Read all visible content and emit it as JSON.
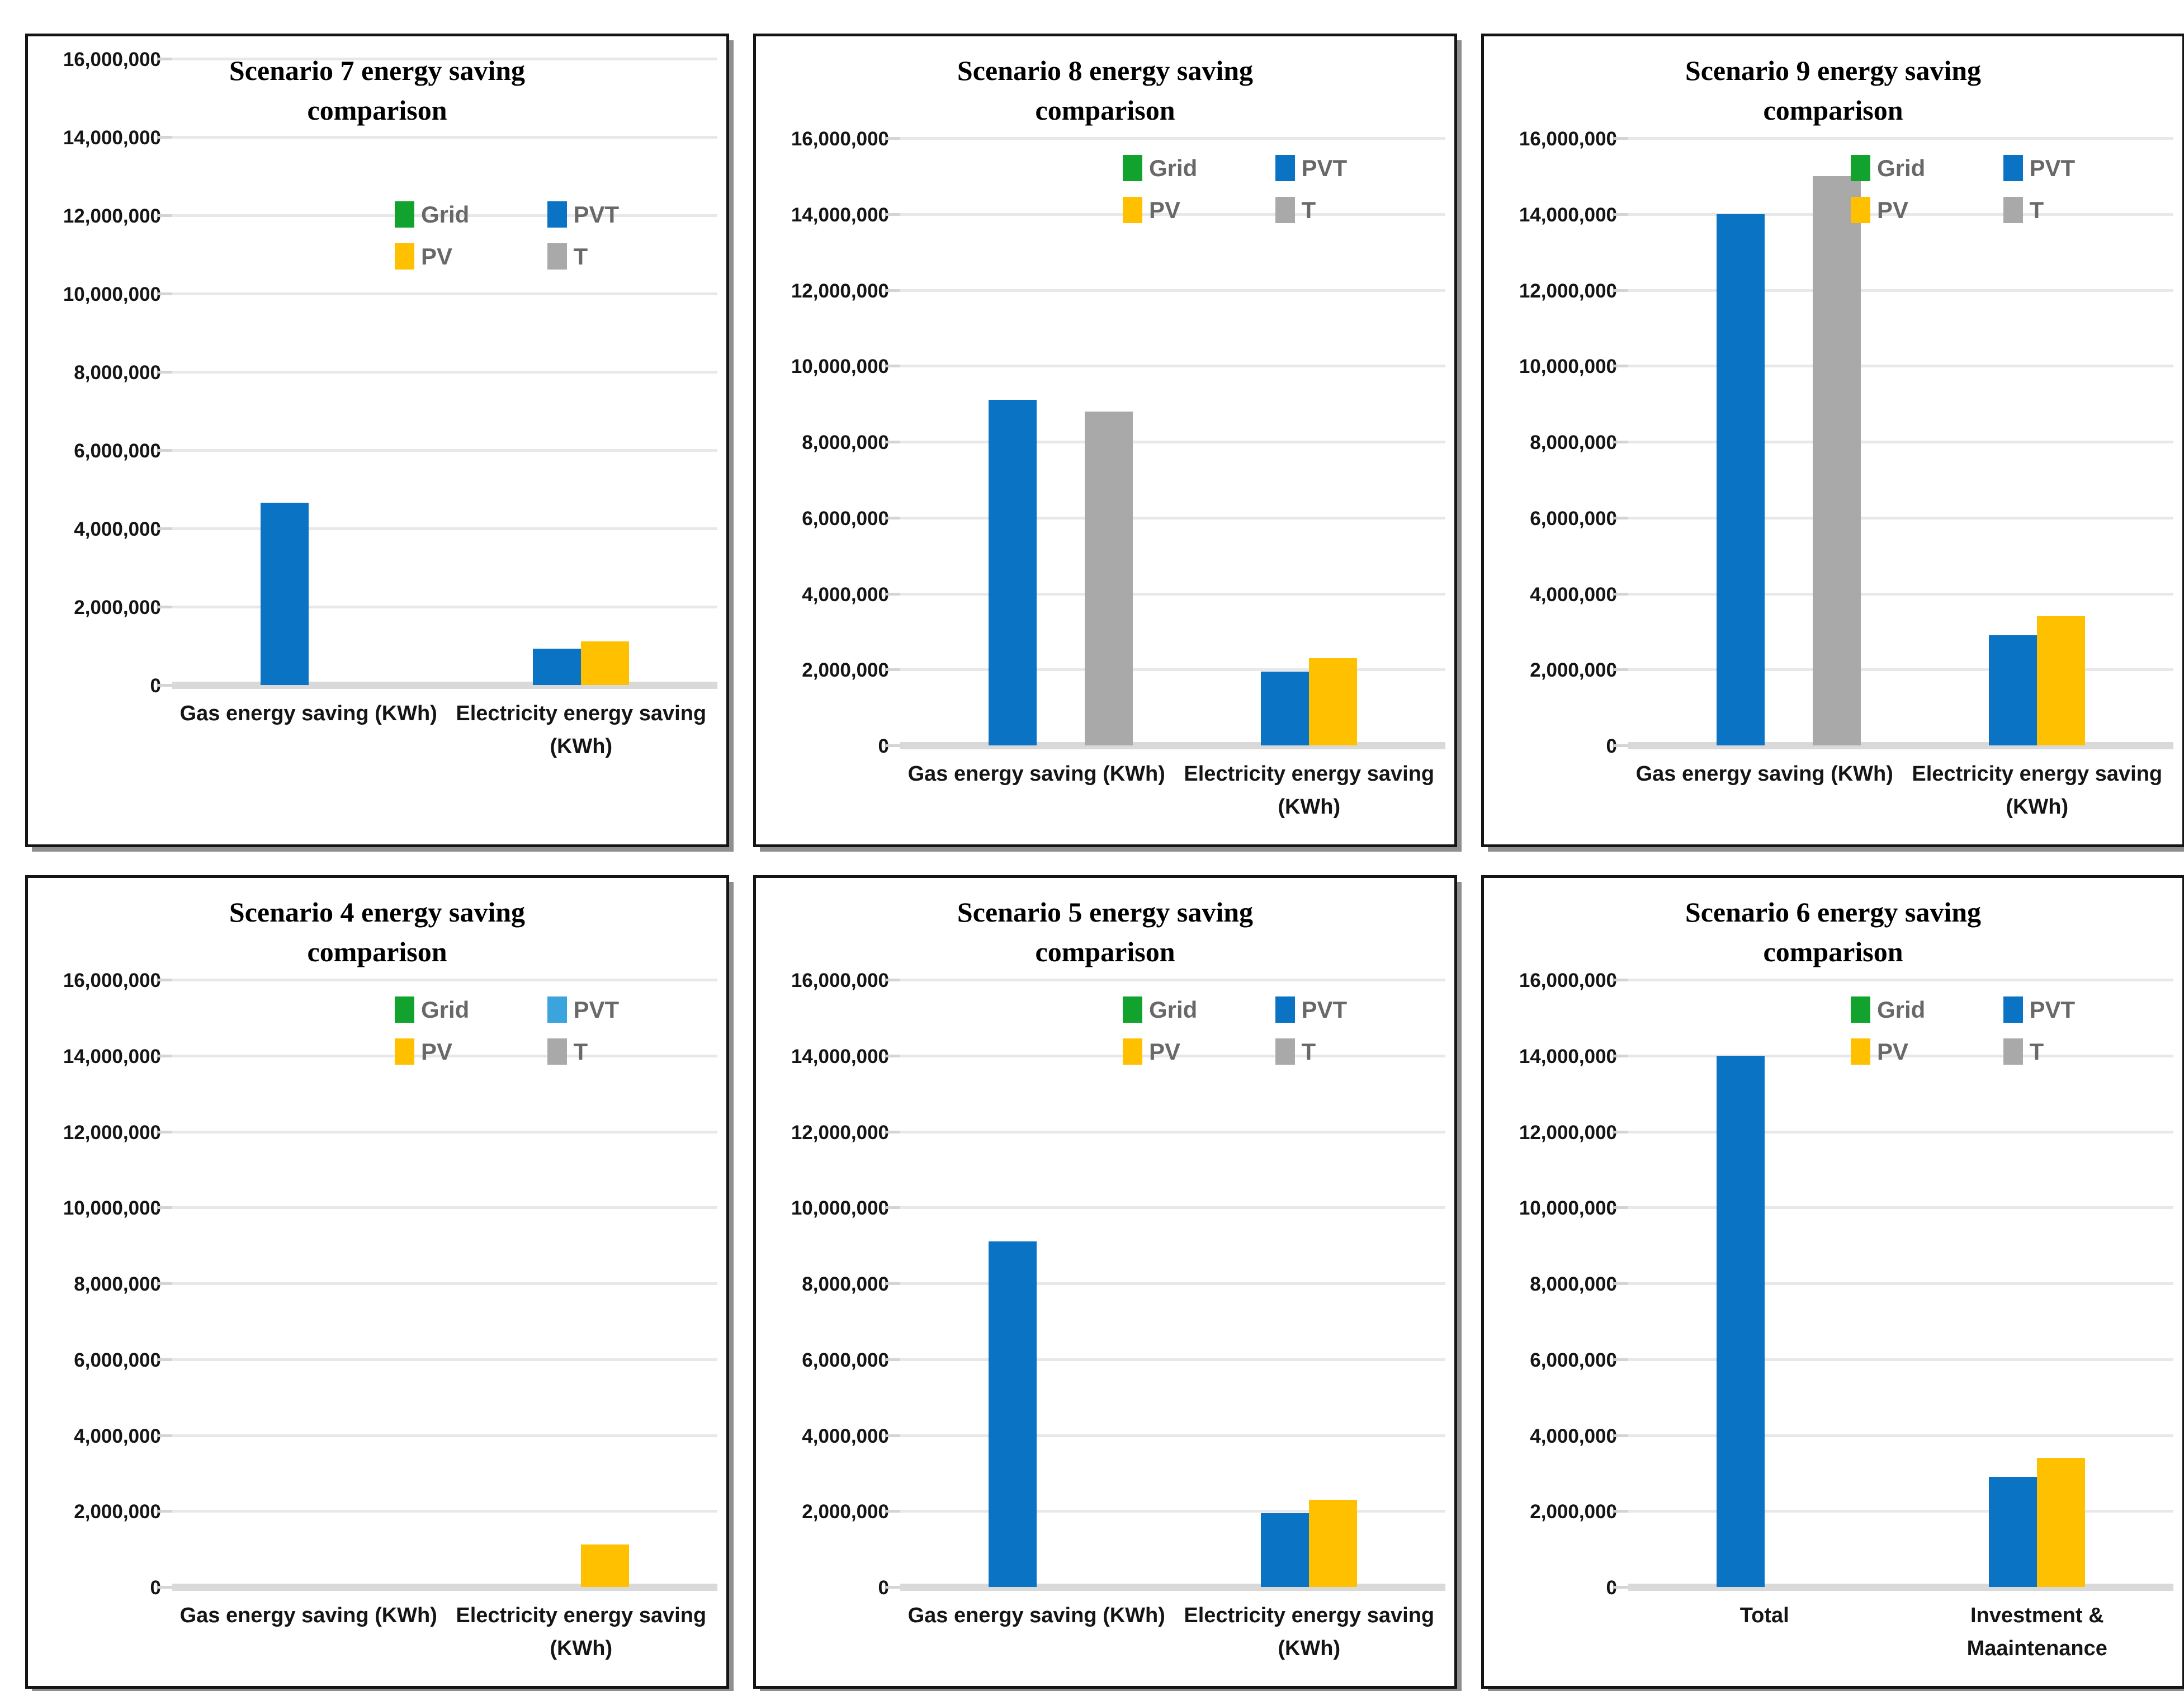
{
  "page": {
    "background": "#ffffff",
    "description": "Figure with six bar charts comparing energy savings per scenario"
  },
  "colors": {
    "grid_series": "#12a32e",
    "pvt": "#0b73c4",
    "pvt_light": "#3ba4dd",
    "pv": "#ffc000",
    "t": "#a9a9a9",
    "gridline": "#e8e8e8",
    "baseline": "#d9d9d9",
    "axis_text": "#151515",
    "legend_text": "#686868",
    "panel_border": "#141414",
    "panel_shadow": "#8f8f8f"
  },
  "axis": {
    "ylim": [
      0,
      16000000
    ],
    "ytick_step": 2000000,
    "ytick_labels_top_to_bottom": [
      "16,000,000",
      "14,000,000",
      "12,000,000",
      "10,000,000",
      "8,000,000",
      "6,000,000",
      "4,000,000",
      "2,000,000",
      "0"
    ]
  },
  "legend": {
    "position": "upper-right",
    "items": [
      {
        "label": "Grid",
        "color_key": "grid_series"
      },
      {
        "label": "PVT",
        "color_key": "pvt"
      },
      {
        "label": "PV",
        "color_key": "pv"
      },
      {
        "label": "T",
        "color_key": "t"
      }
    ]
  },
  "chart_data": [
    {
      "type": "bar",
      "title": "Scenario 7 energy saving comparison",
      "title_lines": [
        "Scenario 7 energy saving",
        "comparison"
      ],
      "categories": [
        "Gas energy saving (KWh)",
        "Electricity energy saving (KWh)"
      ],
      "category_label_lines": [
        [
          "Gas energy saving (KWh)"
        ],
        [
          "Electricity energy saving",
          "(KWh)"
        ]
      ],
      "series": [
        {
          "name": "Grid",
          "color_key": "grid_series",
          "values": [
            0,
            0
          ]
        },
        {
          "name": "PVT",
          "color_key": "pvt",
          "values": [
            4650000,
            930000
          ]
        },
        {
          "name": "PV",
          "color_key": "pv",
          "values": [
            0,
            1120000
          ]
        },
        {
          "name": "T",
          "color_key": "t",
          "values": [
            0,
            0
          ]
        }
      ],
      "ylim": [
        0,
        16000000
      ],
      "ytick_step": 2000000,
      "grid": true,
      "legend_position": "upper-right",
      "variant": "tall"
    },
    {
      "type": "bar",
      "title": "Scenario 8 energy saving comparison",
      "title_lines": [
        "Scenario 8 energy saving",
        "comparison"
      ],
      "categories": [
        "Gas energy saving (KWh)",
        "Electricity energy saving (KWh)"
      ],
      "category_label_lines": [
        [
          "Gas energy saving (KWh)"
        ],
        [
          "Electricity energy saving",
          "(KWh)"
        ]
      ],
      "series": [
        {
          "name": "Grid",
          "color_key": "grid_series",
          "values": [
            0,
            0
          ]
        },
        {
          "name": "PVT",
          "color_key": "pvt",
          "values": [
            9100000,
            1950000
          ]
        },
        {
          "name": "PV",
          "color_key": "pv",
          "values": [
            0,
            2300000
          ]
        },
        {
          "name": "T",
          "color_key": "t",
          "values": [
            8800000,
            0
          ]
        }
      ],
      "ylim": [
        0,
        16000000
      ],
      "ytick_step": 2000000,
      "grid": true,
      "legend_position": "upper-right",
      "variant": "normal"
    },
    {
      "type": "bar",
      "title": "Scenario 9 energy saving comparison",
      "title_lines": [
        "Scenario 9 energy saving",
        "comparison"
      ],
      "categories": [
        "Gas energy saving (KWh)",
        "Electricity energy saving (KWh)"
      ],
      "category_label_lines": [
        [
          "Gas energy saving (KWh)"
        ],
        [
          "Electricity energy saving",
          "(KWh)"
        ]
      ],
      "series": [
        {
          "name": "Grid",
          "color_key": "grid_series",
          "values": [
            0,
            0
          ]
        },
        {
          "name": "PVT",
          "color_key": "pvt",
          "values": [
            14000000,
            2900000
          ]
        },
        {
          "name": "PV",
          "color_key": "pv",
          "values": [
            0,
            3400000
          ]
        },
        {
          "name": "T",
          "color_key": "t",
          "values": [
            15000000,
            0
          ]
        }
      ],
      "ylim": [
        0,
        16000000
      ],
      "ytick_step": 2000000,
      "grid": true,
      "legend_position": "upper-right",
      "variant": "normal"
    },
    {
      "type": "bar",
      "title": "Scenario 4 energy saving comparison",
      "title_lines": [
        "Scenario 4 energy saving",
        "comparison"
      ],
      "categories": [
        "Gas energy saving (KWh)",
        "Electricity energy saving (KWh)"
      ],
      "category_label_lines": [
        [
          "Gas energy saving (KWh)"
        ],
        [
          "Electricity energy saving",
          "(KWh)"
        ]
      ],
      "series": [
        {
          "name": "Grid",
          "color_key": "grid_series",
          "values": [
            0,
            0
          ]
        },
        {
          "name": "PVT",
          "color_key": "pvt",
          "values": [
            0,
            0
          ]
        },
        {
          "name": "PV",
          "color_key": "pv",
          "values": [
            0,
            1120000
          ]
        },
        {
          "name": "T",
          "color_key": "t",
          "values": [
            0,
            0
          ]
        }
      ],
      "legend_swatch_overrides": {
        "PVT": "pvt_light"
      },
      "ylim": [
        0,
        16000000
      ],
      "ytick_step": 2000000,
      "grid": true,
      "legend_position": "upper-right",
      "variant": "normal"
    },
    {
      "type": "bar",
      "title": "Scenario 5 energy saving comparison",
      "title_lines": [
        "Scenario 5 energy saving",
        "comparison"
      ],
      "categories": [
        "Gas energy saving (KWh)",
        "Electricity energy saving (KWh)"
      ],
      "category_label_lines": [
        [
          "Gas energy saving (KWh)"
        ],
        [
          "Electricity energy saving",
          "(KWh)"
        ]
      ],
      "series": [
        {
          "name": "Grid",
          "color_key": "grid_series",
          "values": [
            0,
            0
          ]
        },
        {
          "name": "PVT",
          "color_key": "pvt",
          "values": [
            9100000,
            1950000
          ]
        },
        {
          "name": "PV",
          "color_key": "pv",
          "values": [
            0,
            2300000
          ]
        },
        {
          "name": "T",
          "color_key": "t",
          "values": [
            0,
            0
          ]
        }
      ],
      "ylim": [
        0,
        16000000
      ],
      "ytick_step": 2000000,
      "grid": true,
      "legend_position": "upper-right",
      "variant": "normal"
    },
    {
      "type": "bar",
      "title": "Scenario 6 energy saving comparison",
      "title_lines": [
        "Scenario 6 energy saving",
        "comparison"
      ],
      "categories": [
        "Total",
        "Investment & Maaintenance"
      ],
      "category_label_lines": [
        [
          "Total"
        ],
        [
          "Investment &",
          "Maaintenance"
        ]
      ],
      "series": [
        {
          "name": "Grid",
          "color_key": "grid_series",
          "values": [
            0,
            0
          ]
        },
        {
          "name": "PVT",
          "color_key": "pvt",
          "values": [
            14000000,
            2900000
          ]
        },
        {
          "name": "PV",
          "color_key": "pv",
          "values": [
            0,
            3400000
          ]
        },
        {
          "name": "T",
          "color_key": "t",
          "values": [
            0,
            0
          ]
        }
      ],
      "ylim": [
        0,
        16000000
      ],
      "ytick_step": 2000000,
      "grid": true,
      "legend_position": "upper-right",
      "variant": "normal"
    }
  ]
}
